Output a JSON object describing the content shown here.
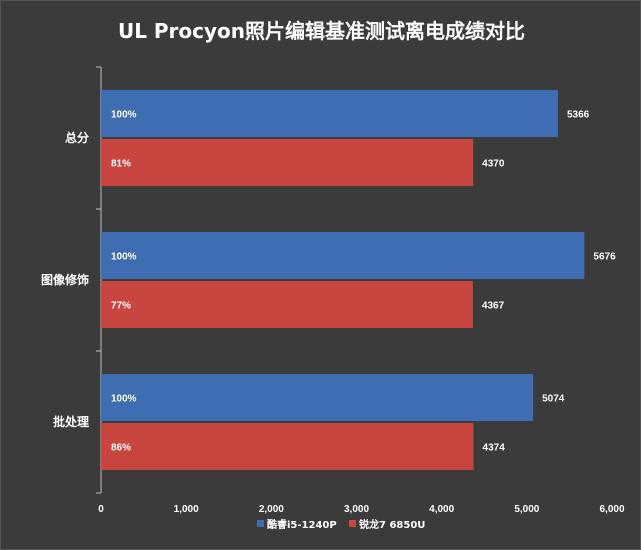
{
  "chart_data": {
    "type": "bar",
    "orientation": "horizontal",
    "title": "UL Procyon照片编辑基准测试离电成绩对比",
    "categories": [
      "总分",
      "图像修饰",
      "批处理"
    ],
    "series": [
      {
        "name": "酷睿i5-1240P",
        "color": "#3e6db1",
        "values": [
          5366,
          5676,
          5074
        ],
        "percent_labels": [
          "100%",
          "100%",
          "100%"
        ]
      },
      {
        "name": "锐龙7 6850U",
        "color": "#c9453f",
        "values": [
          4370,
          4367,
          4374
        ],
        "percent_labels": [
          "81%",
          "77%",
          "86%"
        ]
      }
    ],
    "xlim": [
      0,
      6000
    ],
    "x_ticks": [
      0,
      1000,
      2000,
      3000,
      4000,
      5000,
      6000
    ],
    "x_tick_labels": [
      "0",
      "1,000",
      "2,000",
      "3,000",
      "4,000",
      "5,000",
      "6,000"
    ],
    "grid": false,
    "legend_position": "bottom",
    "background": "#3b3b3b"
  }
}
